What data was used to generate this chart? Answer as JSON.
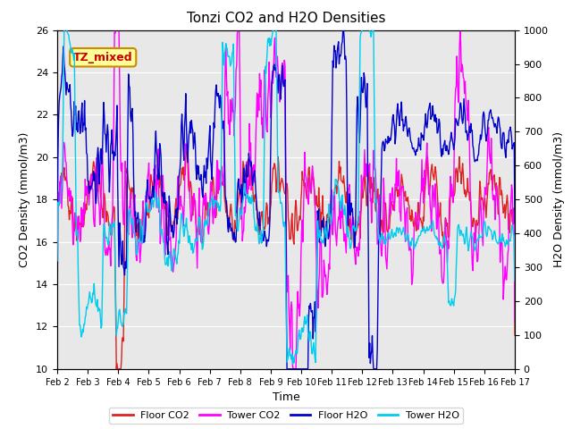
{
  "title": "Tonzi CO2 and H2O Densities",
  "xlabel": "Time",
  "ylabel_left": "CO2 Density (mmol/m3)",
  "ylabel_right": "H2O Density (mmol/m3)",
  "annotation": "TZ_mixed",
  "ylim_left": [
    10,
    26
  ],
  "ylim_right": [
    0,
    1000
  ],
  "yticks_left": [
    10,
    12,
    14,
    16,
    18,
    20,
    22,
    24,
    26
  ],
  "yticks_right": [
    0,
    100,
    200,
    300,
    400,
    500,
    600,
    700,
    800,
    900,
    1000
  ],
  "xtick_labels": [
    "Feb 2",
    "Feb 3",
    "Feb 4",
    "Feb 5",
    "Feb 6",
    "Feb 7",
    "Feb 8",
    "Feb 9",
    "Feb 10",
    "Feb 11",
    "Feb 12",
    "Feb 13",
    "Feb 14",
    "Feb 15",
    "Feb 16",
    "Feb 17"
  ],
  "n_days": 15,
  "colors": {
    "floor_co2": "#dd2222",
    "tower_co2": "#ff00ff",
    "floor_h2o": "#0000cc",
    "tower_h2o": "#00ccee"
  },
  "legend_labels": [
    "Floor CO2",
    "Tower CO2",
    "Floor H2O",
    "Tower H2O"
  ],
  "background_color": "#e8e8e8",
  "annotation_bg": "#ffff99",
  "annotation_border": "#cc8800",
  "grid_color": "#ffffff",
  "lw": 1.0
}
